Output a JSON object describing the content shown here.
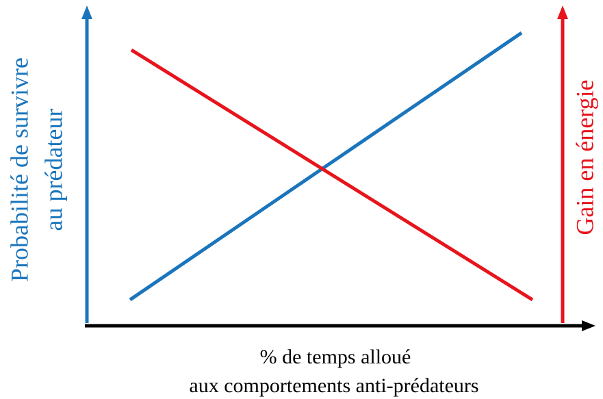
{
  "y_axis_label": [
    "Probabilité de survivre",
    "au prédateur"
  ],
  "y2_axis_label": "Gain en énergie",
  "x_axis_label": [
    "% de temps alloué",
    "aux comportements anti-prédateurs"
  ]
}
